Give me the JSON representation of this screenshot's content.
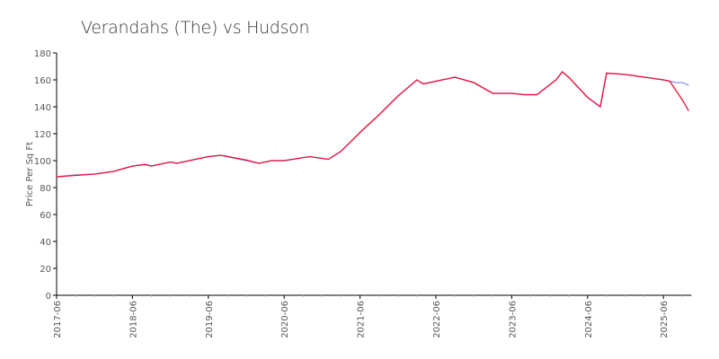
{
  "chart_data": {
    "type": "line",
    "title": "Verandahs (The) vs Hudson",
    "xlabel": "",
    "ylabel": "Price Per Sq Ft",
    "ylim": [
      0,
      180
    ],
    "yticks": [
      0,
      20,
      40,
      60,
      80,
      100,
      120,
      140,
      160,
      180
    ],
    "xticks": [
      "2017-06",
      "2018-06",
      "2019-06",
      "2020-06",
      "2021-06",
      "2022-06",
      "2023-06",
      "2024-06",
      "2025-06"
    ],
    "xlim": [
      "2017-06",
      "2025-10"
    ],
    "grid": false,
    "series": [
      {
        "color": "#a0a0f8",
        "x": [
          "2017-06",
          "2017-09",
          "2017-12",
          "2018-03",
          "2018-06",
          "2018-08",
          "2018-09",
          "2018-12",
          "2019-01",
          "2019-06",
          "2019-08",
          "2019-12",
          "2020-02",
          "2020-04",
          "2020-06",
          "2020-10",
          "2021-01",
          "2021-03",
          "2021-06",
          "2021-09",
          "2021-12",
          "2022-03",
          "2022-04",
          "2022-06",
          "2022-09",
          "2022-12",
          "2023-03",
          "2023-06",
          "2023-08",
          "2023-10",
          "2024-01",
          "2024-02",
          "2024-03",
          "2024-06",
          "2024-08",
          "2024-09",
          "2024-12",
          "2025-03",
          "2025-06",
          "2025-07",
          "2025-08",
          "2025-09",
          "2025-10"
        ],
        "values": [
          88,
          89.5,
          90,
          92,
          96,
          97.5,
          96,
          99,
          98,
          103,
          104,
          100,
          98,
          100,
          100,
          103,
          101,
          107,
          121,
          134,
          148,
          160,
          157,
          159,
          162,
          158,
          150,
          150,
          149,
          149,
          160,
          166,
          162,
          147,
          140,
          165,
          164,
          162,
          160,
          159,
          158,
          158,
          156
        ]
      },
      {
        "color": "#ee1133",
        "x": [
          "2017-06",
          "2017-09",
          "2017-12",
          "2018-03",
          "2018-06",
          "2018-08",
          "2018-09",
          "2018-12",
          "2019-01",
          "2019-06",
          "2019-08",
          "2019-12",
          "2020-02",
          "2020-04",
          "2020-06",
          "2020-10",
          "2021-01",
          "2021-03",
          "2021-06",
          "2021-09",
          "2021-12",
          "2022-03",
          "2022-04",
          "2022-06",
          "2022-09",
          "2022-12",
          "2023-03",
          "2023-06",
          "2023-08",
          "2023-10",
          "2024-01",
          "2024-02",
          "2024-03",
          "2024-06",
          "2024-08",
          "2024-09",
          "2024-12",
          "2025-03",
          "2025-06",
          "2025-07",
          "2025-08",
          "2025-09",
          "2025-10"
        ],
        "values": [
          88,
          89,
          90,
          92,
          96,
          97,
          96,
          99,
          98,
          103,
          104,
          100.5,
          98,
          100,
          100,
          103,
          101,
          107,
          121,
          134,
          148,
          160,
          157,
          159,
          162,
          158,
          150,
          150,
          149,
          149,
          160,
          166,
          162,
          147,
          140,
          165,
          164,
          162,
          160,
          159,
          152,
          145,
          137
        ]
      }
    ]
  }
}
